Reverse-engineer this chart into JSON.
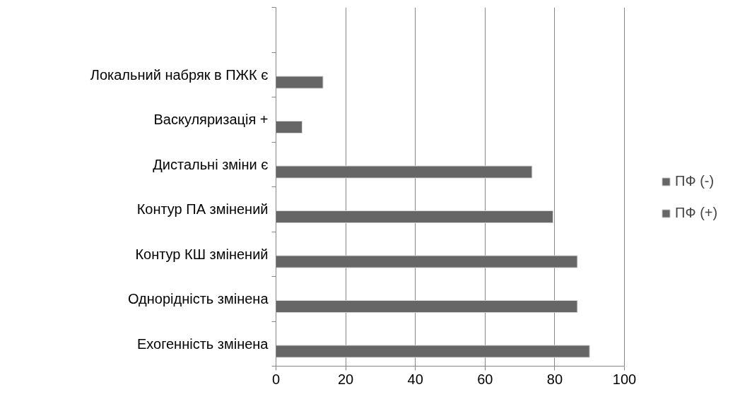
{
  "chart_data": {
    "type": "bar",
    "orientation": "horizontal",
    "categories": [
      null,
      "Локальний набряк в ПЖК є",
      "Васкуляризація +",
      "Дистальні зміни є",
      "Контур ПА змінений",
      "Контур КШ змінений",
      "Однорідність змінена",
      "Ехогенність змінена"
    ],
    "series": [
      {
        "name": "ПФ (-)",
        "color": "#666666",
        "values": [
          null,
          13.5,
          7.5,
          73.5,
          79.5,
          86.5,
          86.5,
          90
        ]
      },
      {
        "name": "ПФ (+)",
        "color": "#666666",
        "values": [
          null,
          null,
          null,
          null,
          null,
          null,
          null,
          null
        ]
      }
    ],
    "xlim": [
      0,
      100
    ],
    "xticks": [
      0,
      20,
      40,
      60,
      80,
      100
    ],
    "grid": "x",
    "legend": "right"
  }
}
